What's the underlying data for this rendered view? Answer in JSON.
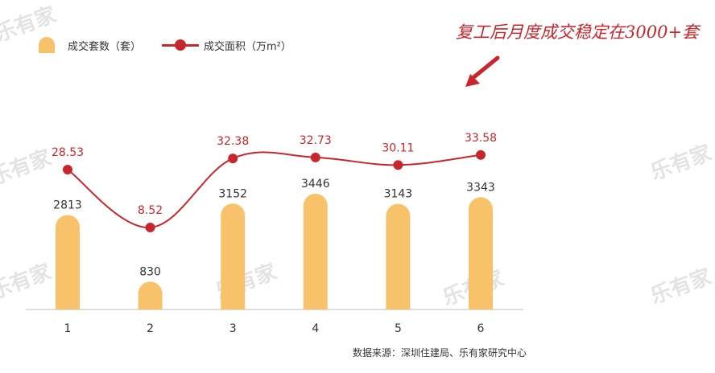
{
  "watermark": "乐有家",
  "legend": {
    "bar_label": "成交套数（套）",
    "line_label": "成交面积（万m²）"
  },
  "annotation": "复工后月度成交稳定在3000+套",
  "source": "数据来源：深圳住建局、乐有家研究中心",
  "colors": {
    "bar": "#f7c269",
    "line": "#c8262d",
    "line_label": "#c8262d",
    "bar_label": "#333333",
    "axis": "#bdbdbd"
  },
  "chart_data": {
    "type": "bar+line",
    "categories": [
      "1",
      "2",
      "3",
      "4",
      "5",
      "6"
    ],
    "series": [
      {
        "name": "成交套数（套）",
        "type": "bar",
        "values": [
          2813,
          830,
          3152,
          3446,
          3143,
          3343
        ],
        "labels": [
          "2813",
          "830",
          "3152",
          "3446",
          "3143",
          "3343"
        ]
      },
      {
        "name": "成交面积（万m²）",
        "type": "line",
        "values": [
          28.53,
          8.52,
          32.38,
          32.73,
          30.11,
          33.58
        ],
        "labels": [
          "28.53",
          "8.52",
          "32.38",
          "32.73",
          "30.11",
          "33.58"
        ]
      }
    ],
    "legend_position": "top-left",
    "grid": false
  }
}
